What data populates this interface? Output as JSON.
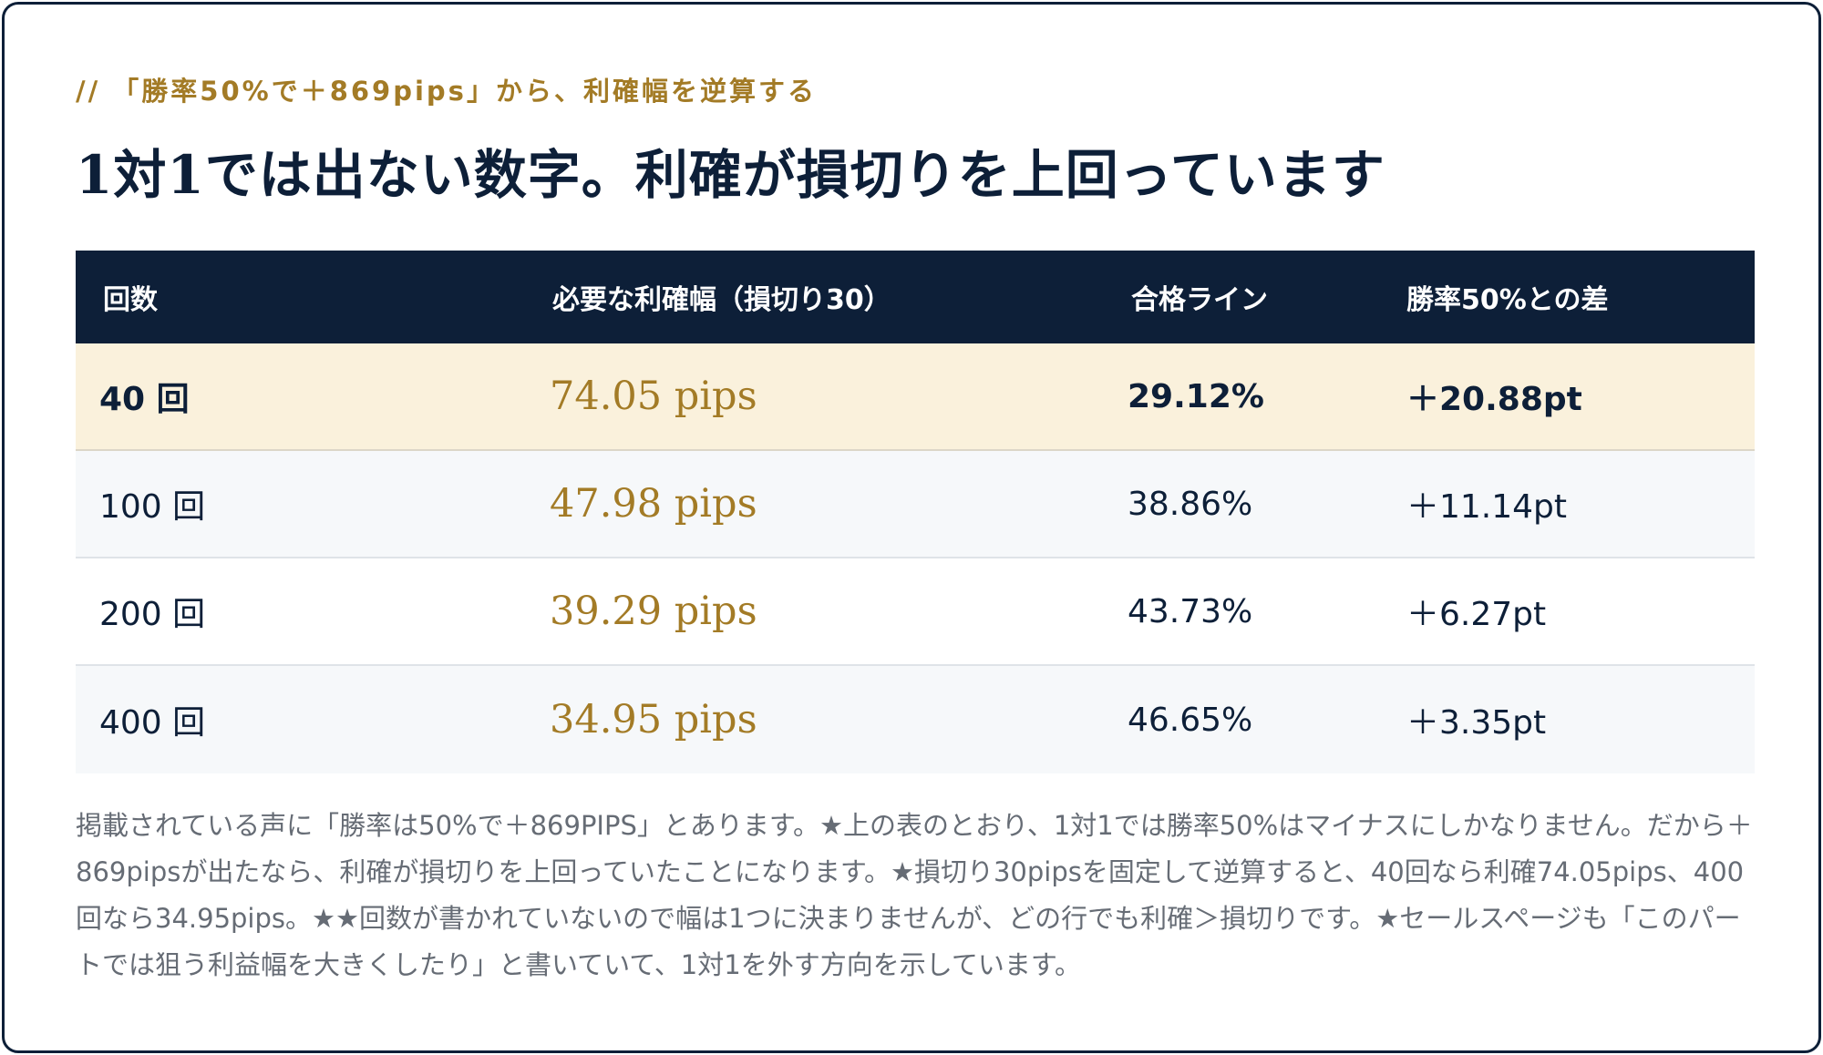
{
  "eyebrow": "// 「勝率50%で＋869pips」から、利確幅を逆算する",
  "headline": "1対1では出ない数字。利確が損切りを上回っています",
  "table": {
    "headers": [
      "回数",
      "必要な利確幅（損切り30）",
      "合格ライン",
      "勝率50%との差"
    ],
    "rows": [
      {
        "count": "40 回",
        "tp": "74.05 pips",
        "line": "29.12%",
        "diff": "＋20.88pt",
        "highlight": true
      },
      {
        "count": "100 回",
        "tp": "47.98 pips",
        "line": "38.86%",
        "diff": "＋11.14pt",
        "highlight": false
      },
      {
        "count": "200 回",
        "tp": "39.29 pips",
        "line": "43.73%",
        "diff": "＋6.27pt",
        "highlight": false
      },
      {
        "count": "400 回",
        "tp": "34.95 pips",
        "line": "46.65%",
        "diff": "＋3.35pt",
        "highlight": false
      }
    ]
  },
  "note": "掲載されている声に「勝率は50%で＋869PIPS」とあります。★上の表のとおり、1対1では勝率50%はマイナスにしかなりません。だから＋869pipsが出たなら、利確が損切りを上回っていたことになります。★損切り30pipsを固定して逆算すると、40回なら利確74.05pips、400回なら34.95pips。★★回数が書かれていないので幅は1つに決まりませんが、どの行でも利確＞損切りです。★セールスページも「このパートでは狙う利益幅を大きくしたり」と書いていて、1対1を外す方向を示しています。",
  "colors": {
    "navy": "#0d1f38",
    "gold": "#a37b26",
    "highlight_row": "#faf1dc"
  }
}
